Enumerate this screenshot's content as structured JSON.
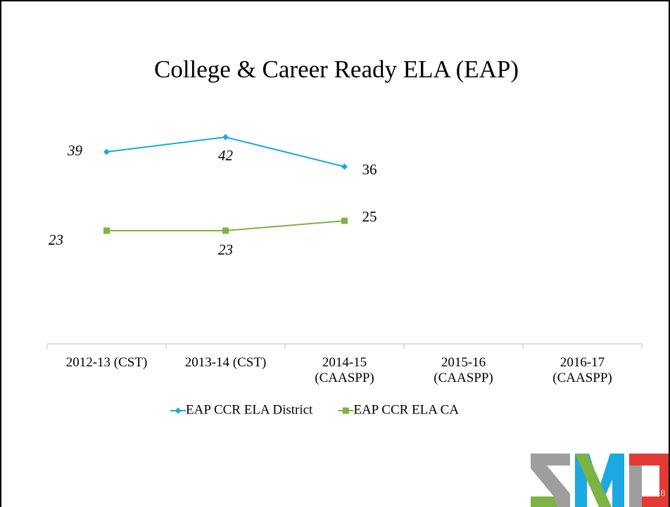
{
  "chart_data": {
    "type": "line",
    "title": "College & Career Ready ELA (EAP)",
    "categories": [
      "2012-13 (CST)",
      "2013-14 (CST)",
      "2014-15 (CAASPP)",
      "2015-16 (CAASPP)",
      "2016-17 (CAASPP)"
    ],
    "series": [
      {
        "name": "EAP CCR ELA District",
        "color": "#1aa9e2",
        "marker": "diamond",
        "values": [
          39,
          42,
          36,
          null,
          null
        ]
      },
      {
        "name": "EAP CCR ELA CA",
        "color": "#7cb342",
        "marker": "square",
        "values": [
          23,
          23,
          25,
          null,
          null
        ]
      }
    ],
    "ylim": [
      0,
      50
    ],
    "grid": false,
    "legend": "bottom"
  },
  "page_number": "8"
}
